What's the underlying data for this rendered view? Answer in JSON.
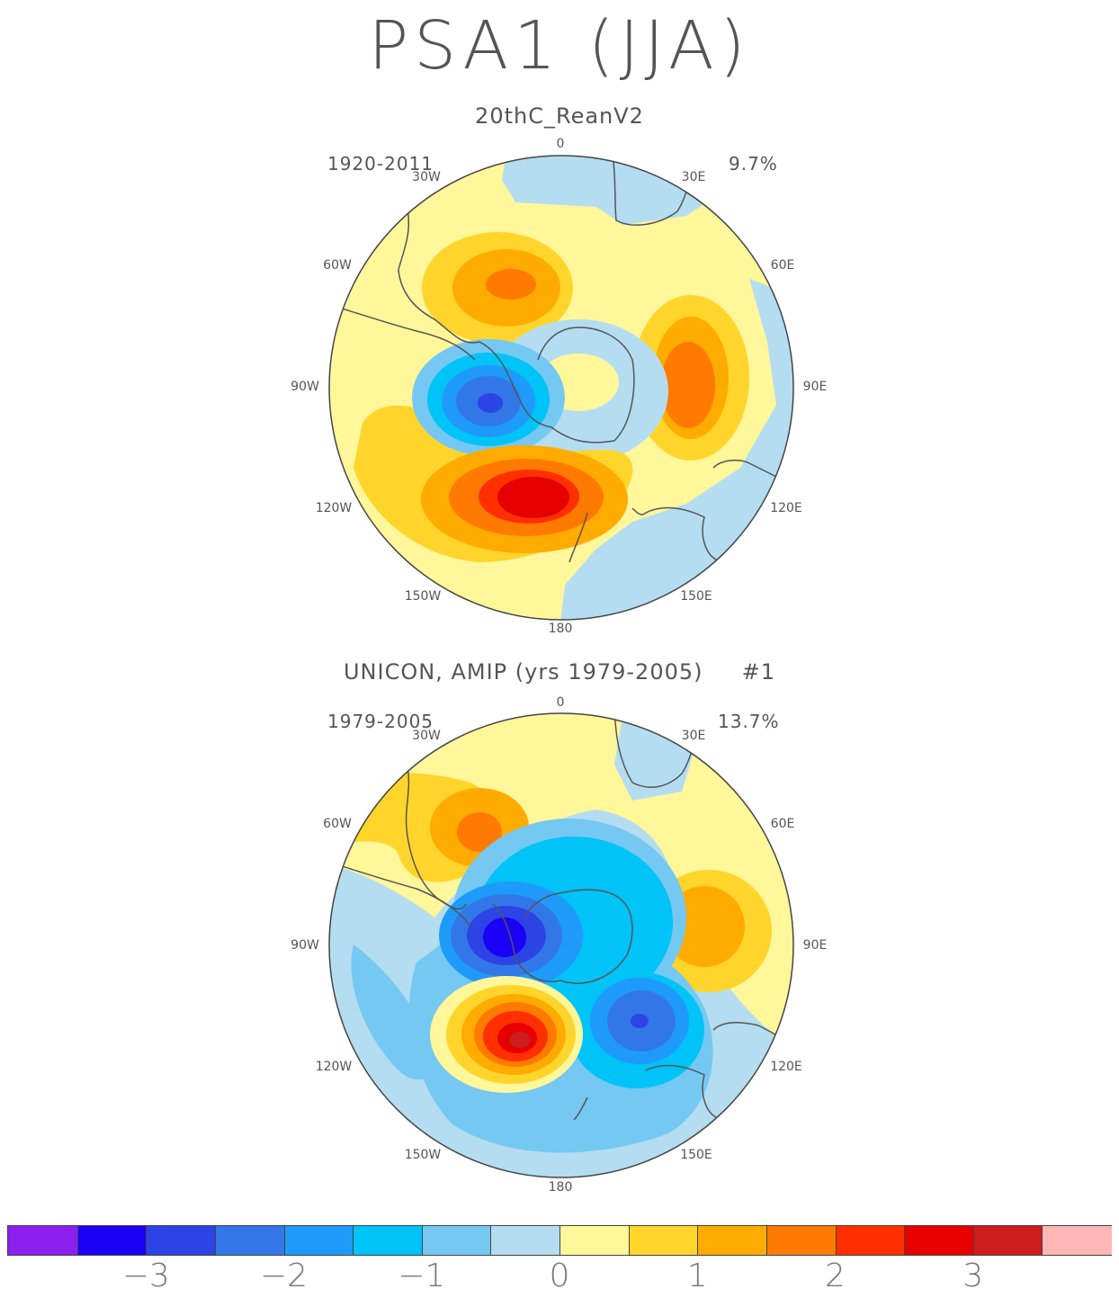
{
  "title": "PSA1 (JJA)",
  "panels": [
    {
      "title": "20thC_ReanV2",
      "period": "1920-2011",
      "variance": "9.7%",
      "lon_labels": [
        "0",
        "30E",
        "60E",
        "90E",
        "120E",
        "150E",
        "180",
        "150W",
        "120W",
        "90W",
        "60W",
        "30W"
      ]
    },
    {
      "title": "UNICON, AMIP (yrs 1979-2005)     #1",
      "period": "1979-2005",
      "variance": "13.7%",
      "lon_labels": [
        "0",
        "30E",
        "60E",
        "90E",
        "120E",
        "150E",
        "180",
        "150W",
        "120W",
        "90W",
        "60W",
        "30W"
      ]
    }
  ],
  "colorbar": {
    "colors": [
      "#8a1ff0",
      "#1a00f5",
      "#2c43e6",
      "#3277e8",
      "#1e9bfa",
      "#00c3f7",
      "#75c8f2",
      "#b4ddf1",
      "#fff79a",
      "#ffd52c",
      "#ffab00",
      "#ff7a00",
      "#ff2f00",
      "#e60000",
      "#cd1c1c",
      "#ffb6b6"
    ],
    "labels": [
      "−3",
      "−2",
      "−1",
      "0",
      "1",
      "2",
      "3"
    ]
  },
  "colors": {
    "neutral": "#fff79a",
    "coast": "#555555"
  }
}
